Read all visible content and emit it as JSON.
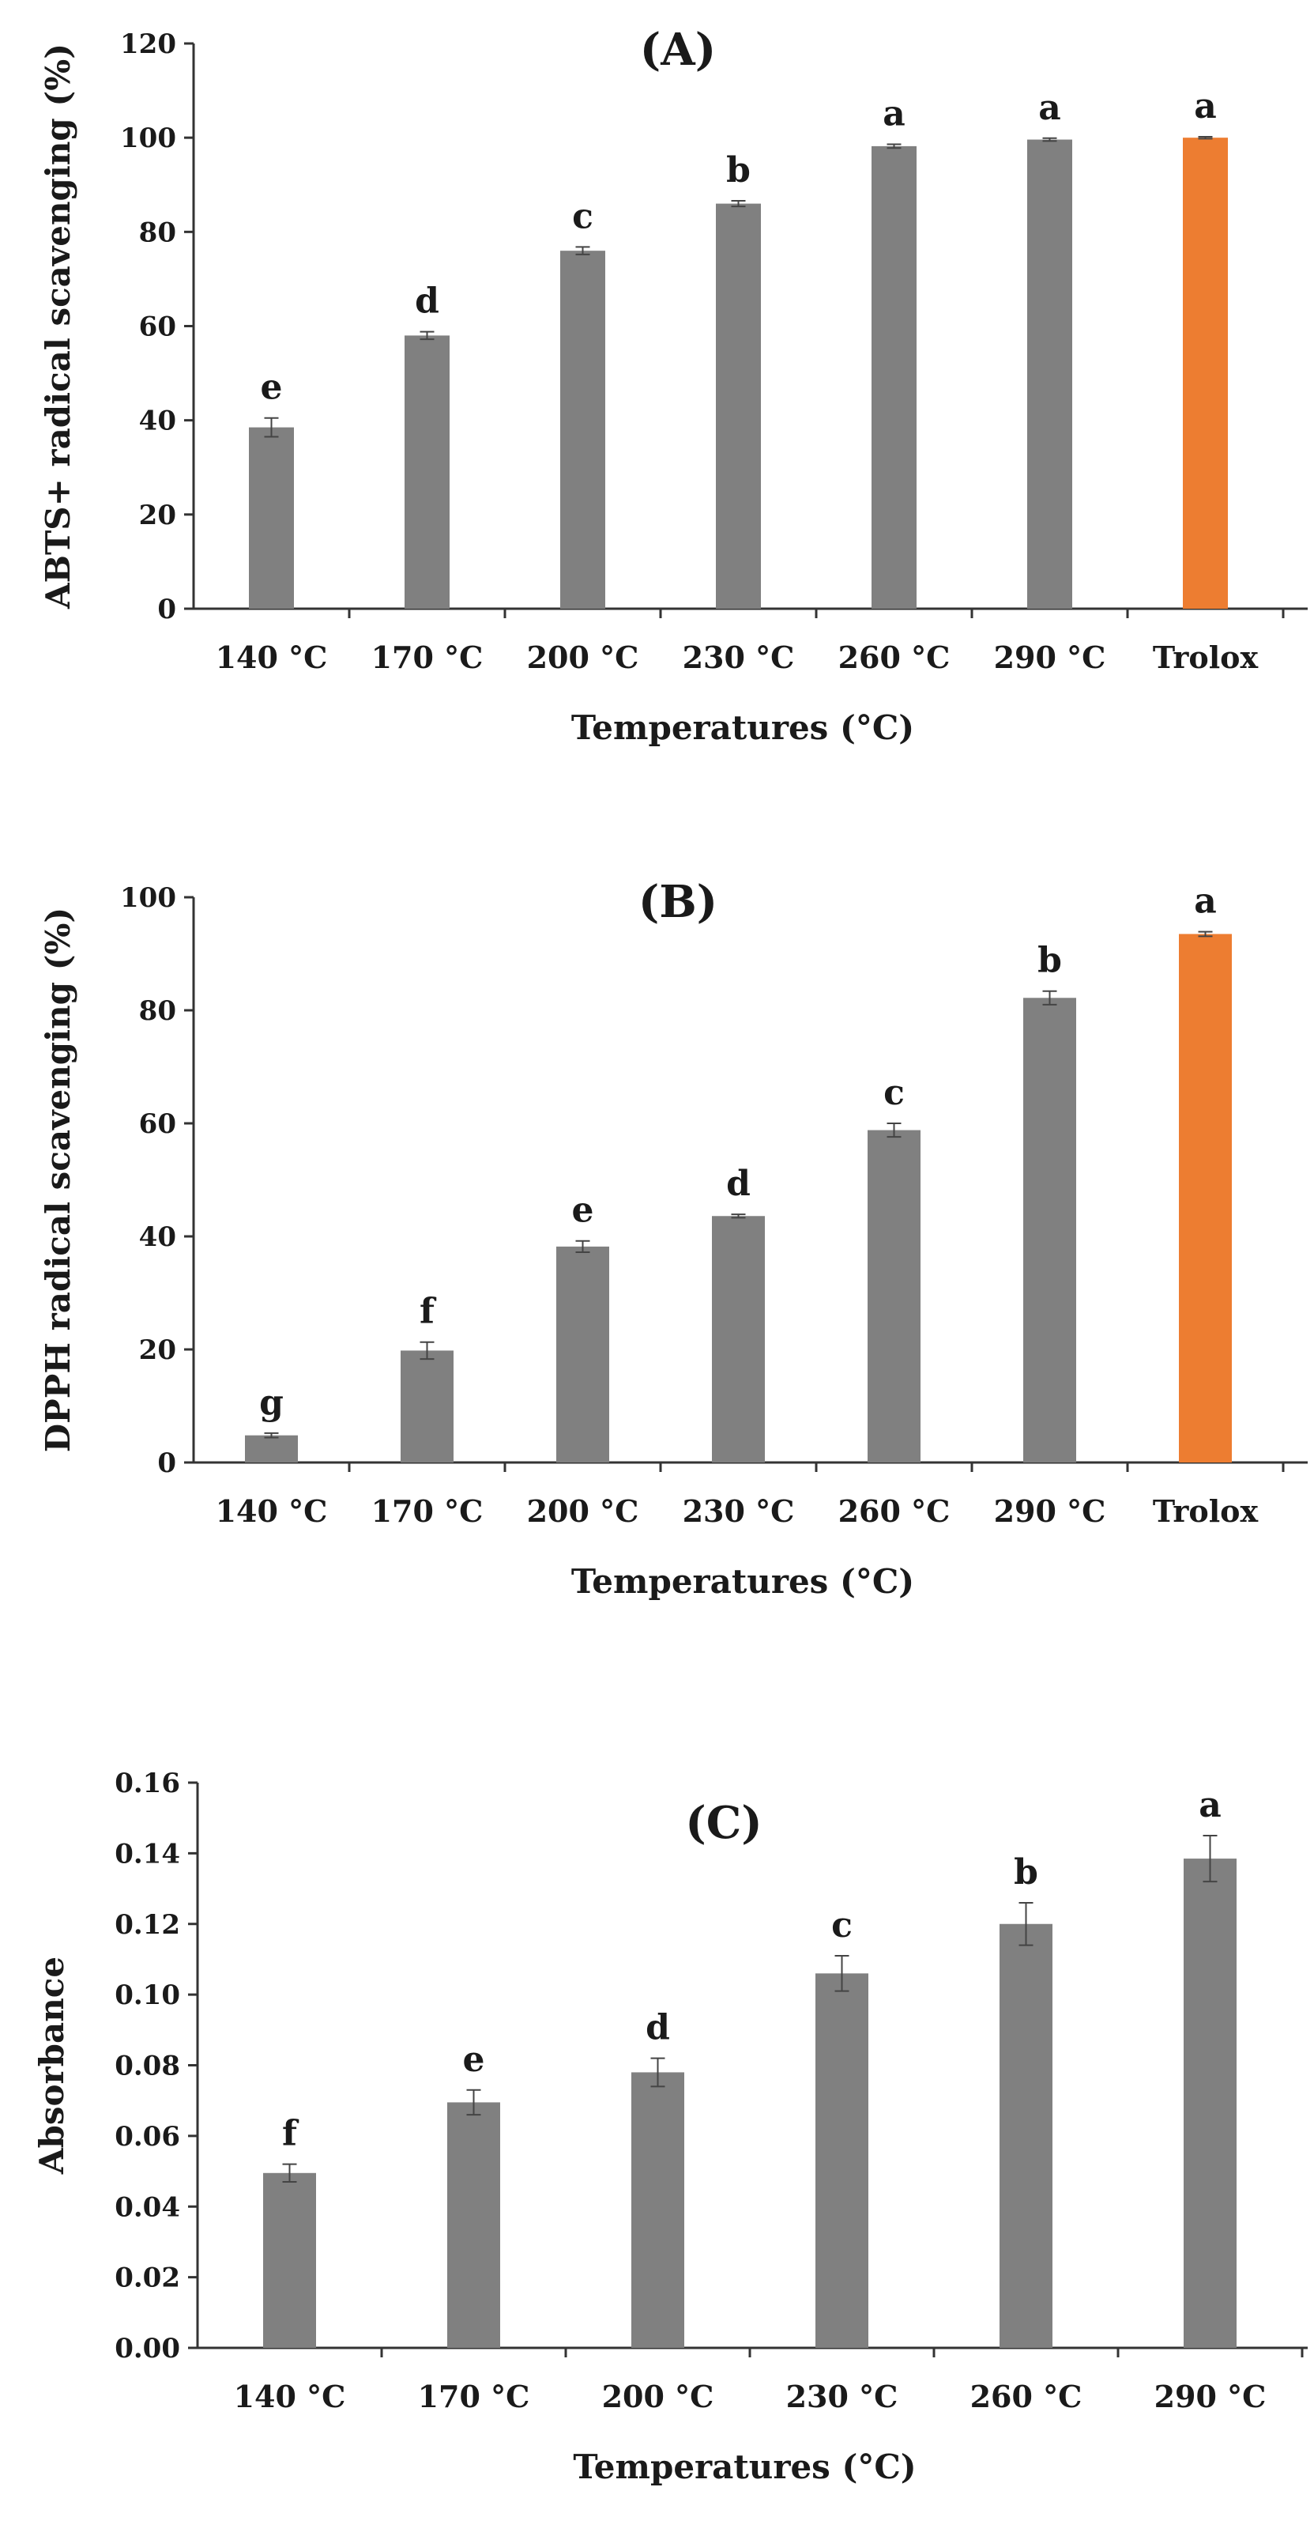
{
  "chart_data": [
    {
      "type": "bar",
      "title": "(A)",
      "xlabel": "Temperatures (°C)",
      "ylabel": "ABTS+ radical scavenging (%)",
      "ylim": [
        0,
        120
      ],
      "yticks": [
        0,
        20,
        40,
        60,
        80,
        100,
        120
      ],
      "ytick_labels": [
        "0",
        "20",
        "40",
        "60",
        "80",
        "100",
        "120"
      ],
      "grid": false,
      "categories": [
        "140 °C",
        "170 °C",
        "200 °C",
        "230 °C",
        "260 °C",
        "290 °C",
        "Trolox"
      ],
      "values": [
        38.5,
        58.0,
        76.0,
        86.0,
        98.2,
        99.6,
        100.0
      ],
      "errors": [
        2.0,
        0.8,
        0.8,
        0.6,
        0.4,
        0.3,
        0.2
      ],
      "annotations": [
        "e",
        "d",
        "c",
        "b",
        "a",
        "a",
        "a"
      ],
      "colors": [
        "#808080",
        "#808080",
        "#808080",
        "#808080",
        "#808080",
        "#808080",
        "#ed7d31"
      ]
    },
    {
      "type": "bar",
      "title": "(B)",
      "xlabel": "Temperatures (°C)",
      "ylabel": "DPPH radical scavenging (%)",
      "ylim": [
        0,
        100
      ],
      "yticks": [
        0,
        20,
        40,
        60,
        80,
        100
      ],
      "ytick_labels": [
        "0",
        "20",
        "40",
        "60",
        "80",
        "100"
      ],
      "grid": false,
      "categories": [
        "140 °C",
        "170 °C",
        "200 °C",
        "230 °C",
        "260 °C",
        "290 °C",
        "Trolox"
      ],
      "values": [
        4.8,
        19.8,
        38.2,
        43.6,
        58.8,
        82.2,
        93.5
      ],
      "errors": [
        0.4,
        1.5,
        1.0,
        0.3,
        1.2,
        1.2,
        0.4
      ],
      "annotations": [
        "g",
        "f",
        "e",
        "d",
        "c",
        "b",
        "a"
      ],
      "colors": [
        "#808080",
        "#808080",
        "#808080",
        "#808080",
        "#808080",
        "#808080",
        "#ed7d31"
      ]
    },
    {
      "type": "bar",
      "title": "(C)",
      "xlabel": "Temperatures (°C)",
      "ylabel": "Absorbance",
      "ylim": [
        0,
        0.16
      ],
      "yticks": [
        0,
        0.02,
        0.04,
        0.06,
        0.08,
        0.1,
        0.12,
        0.14,
        0.16
      ],
      "ytick_labels": [
        "0.00",
        "0.02",
        "0.04",
        "0.06",
        "0.08",
        "0.10",
        "0.12",
        "0.14",
        "0.16"
      ],
      "grid": false,
      "categories": [
        "140 °C",
        "170 °C",
        "200 °C",
        "230 °C",
        "260 °C",
        "290 °C"
      ],
      "values": [
        0.0495,
        0.0695,
        0.078,
        0.106,
        0.12,
        0.1385
      ],
      "errors": [
        0.0025,
        0.0035,
        0.004,
        0.005,
        0.006,
        0.0065
      ],
      "annotations": [
        "f",
        "e",
        "d",
        "c",
        "b",
        "a"
      ],
      "colors": [
        "#808080",
        "#808080",
        "#808080",
        "#808080",
        "#808080",
        "#808080"
      ]
    }
  ]
}
